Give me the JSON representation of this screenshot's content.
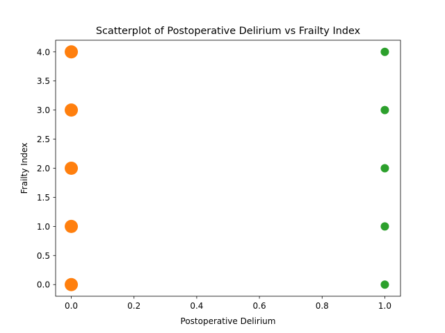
{
  "chart_data": {
    "type": "scatter",
    "title": "Scatterplot of Postoperative Delirium vs Frailty Index",
    "xlabel": "Postoperative Delirium",
    "ylabel": "Frailty Index",
    "xlim": [
      -0.05,
      1.05
    ],
    "ylim": [
      -0.2,
      4.2
    ],
    "xticks": [
      "0.0",
      "0.2",
      "0.4",
      "0.6",
      "0.8",
      "1.0"
    ],
    "yticks": [
      "0.0",
      "0.5",
      "1.0",
      "1.5",
      "2.0",
      "2.5",
      "3.0",
      "3.5",
      "4.0"
    ],
    "grid": false,
    "series": [
      {
        "color": "#ff7f0e",
        "marker_size": "large",
        "points": [
          [
            0,
            0
          ],
          [
            0,
            1
          ],
          [
            0,
            2
          ],
          [
            0,
            3
          ],
          [
            0,
            4
          ]
        ]
      },
      {
        "color": "#2ca02c",
        "marker_size": "small",
        "points": [
          [
            1,
            0
          ],
          [
            1,
            1
          ],
          [
            1,
            2
          ],
          [
            1,
            3
          ],
          [
            1,
            4
          ]
        ]
      }
    ]
  }
}
